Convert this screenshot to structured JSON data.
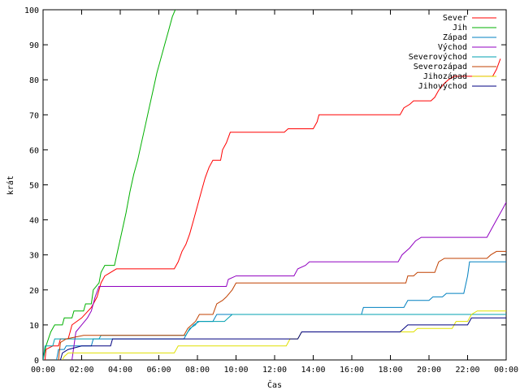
{
  "chart_data": {
    "type": "line",
    "title": "",
    "xlabel": "Čas",
    "ylabel": "krát",
    "xlim": [
      0,
      24
    ],
    "ylim": [
      0,
      100
    ],
    "grid": false,
    "legend_position": "top-right",
    "x_ticks": [
      "00:00",
      "02:00",
      "04:00",
      "06:00",
      "08:00",
      "10:00",
      "12:00",
      "14:00",
      "16:00",
      "18:00",
      "20:00",
      "22:00",
      "00:00"
    ],
    "y_ticks": [
      0,
      10,
      20,
      30,
      40,
      50,
      60,
      70,
      80,
      90,
      100
    ],
    "series": [
      {
        "name": "Sever",
        "color": "#ff0000",
        "points": [
          [
            0.1,
            0
          ],
          [
            0.15,
            3
          ],
          [
            0.5,
            4
          ],
          [
            0.8,
            4
          ],
          [
            0.9,
            6
          ],
          [
            1.3,
            6
          ],
          [
            1.4,
            8
          ],
          [
            1.5,
            10
          ],
          [
            2.0,
            12
          ],
          [
            2.5,
            15
          ],
          [
            2.8,
            18
          ],
          [
            3.0,
            22
          ],
          [
            3.2,
            24
          ],
          [
            3.5,
            25
          ],
          [
            3.8,
            26
          ],
          [
            6.8,
            26
          ],
          [
            7.0,
            28
          ],
          [
            7.2,
            31
          ],
          [
            7.4,
            33
          ],
          [
            7.6,
            36
          ],
          [
            7.8,
            40
          ],
          [
            8.0,
            44
          ],
          [
            8.2,
            48
          ],
          [
            8.4,
            52
          ],
          [
            8.6,
            55
          ],
          [
            8.8,
            57
          ],
          [
            9.2,
            57
          ],
          [
            9.3,
            60
          ],
          [
            9.5,
            62
          ],
          [
            9.7,
            65
          ],
          [
            12.5,
            65
          ],
          [
            12.7,
            66
          ],
          [
            14.0,
            66
          ],
          [
            14.2,
            68
          ],
          [
            14.3,
            70
          ],
          [
            18.5,
            70
          ],
          [
            18.7,
            72
          ],
          [
            19.0,
            73
          ],
          [
            19.2,
            74
          ],
          [
            20.1,
            74
          ],
          [
            20.3,
            75
          ],
          [
            20.5,
            77
          ],
          [
            20.8,
            79
          ],
          [
            21.0,
            80
          ],
          [
            21.3,
            81
          ],
          [
            23.3,
            81
          ],
          [
            23.5,
            83
          ],
          [
            23.7,
            86
          ]
        ]
      },
      {
        "name": "Jih",
        "color": "#00b000",
        "points": [
          [
            0.0,
            0
          ],
          [
            0.15,
            4
          ],
          [
            0.4,
            8
          ],
          [
            0.6,
            10
          ],
          [
            1.0,
            10
          ],
          [
            1.1,
            12
          ],
          [
            1.5,
            12
          ],
          [
            1.6,
            14
          ],
          [
            2.1,
            14
          ],
          [
            2.2,
            16
          ],
          [
            2.5,
            16
          ],
          [
            2.6,
            20
          ],
          [
            2.9,
            22
          ],
          [
            3.0,
            25
          ],
          [
            3.2,
            27
          ],
          [
            3.7,
            27
          ],
          [
            3.9,
            32
          ],
          [
            4.1,
            37
          ],
          [
            4.3,
            42
          ],
          [
            4.5,
            48
          ],
          [
            4.7,
            53
          ],
          [
            4.9,
            57
          ],
          [
            5.1,
            62
          ],
          [
            5.3,
            67
          ],
          [
            5.5,
            72
          ],
          [
            5.7,
            77
          ],
          [
            5.9,
            82
          ],
          [
            6.1,
            86
          ],
          [
            6.3,
            90
          ],
          [
            6.5,
            94
          ],
          [
            6.7,
            98
          ],
          [
            6.85,
            100
          ]
        ]
      },
      {
        "name": "Západ",
        "color": "#0080c0",
        "points": [
          [
            0.7,
            0
          ],
          [
            0.8,
            3
          ],
          [
            1.1,
            3
          ],
          [
            1.2,
            4
          ],
          [
            2.5,
            4
          ],
          [
            2.6,
            6
          ],
          [
            7.3,
            6
          ],
          [
            7.5,
            8
          ],
          [
            7.8,
            10
          ],
          [
            8.1,
            11
          ],
          [
            8.8,
            11
          ],
          [
            9.0,
            13
          ],
          [
            16.5,
            13
          ],
          [
            16.6,
            15
          ],
          [
            18.7,
            15
          ],
          [
            18.9,
            17
          ],
          [
            20.0,
            17
          ],
          [
            20.2,
            18
          ],
          [
            20.7,
            18
          ],
          [
            20.9,
            19
          ],
          [
            21.8,
            19
          ],
          [
            22.0,
            24
          ],
          [
            22.1,
            28
          ],
          [
            24,
            28
          ]
        ]
      },
      {
        "name": "Východ",
        "color": "#9000c0",
        "points": [
          [
            1.5,
            0
          ],
          [
            1.7,
            8
          ],
          [
            2.0,
            10
          ],
          [
            2.3,
            12
          ],
          [
            2.5,
            14
          ],
          [
            2.7,
            18
          ],
          [
            2.9,
            21
          ],
          [
            9.5,
            21
          ],
          [
            9.6,
            23
          ],
          [
            10.0,
            24
          ],
          [
            13.0,
            24
          ],
          [
            13.2,
            26
          ],
          [
            13.6,
            27
          ],
          [
            13.8,
            28
          ],
          [
            18.4,
            28
          ],
          [
            18.6,
            30
          ],
          [
            19.0,
            32
          ],
          [
            19.3,
            34
          ],
          [
            19.6,
            35
          ],
          [
            23.0,
            35
          ],
          [
            23.2,
            37
          ],
          [
            23.5,
            40
          ],
          [
            23.8,
            43
          ],
          [
            24,
            45
          ]
        ]
      },
      {
        "name": "Severovýchod",
        "color": "#00a0b0",
        "points": [
          [
            0.0,
            0
          ],
          [
            0.1,
            4
          ],
          [
            0.5,
            4
          ],
          [
            0.6,
            6
          ],
          [
            2.9,
            6
          ],
          [
            3.0,
            7
          ],
          [
            7.4,
            7
          ],
          [
            7.6,
            9
          ],
          [
            7.9,
            10
          ],
          [
            8.0,
            11
          ],
          [
            9.4,
            11
          ],
          [
            9.6,
            12
          ],
          [
            9.8,
            13
          ],
          [
            15.2,
            13
          ],
          [
            15.3,
            13
          ],
          [
            16.6,
            13
          ],
          [
            16.7,
            13
          ],
          [
            24,
            13
          ]
        ]
      },
      {
        "name": "Severozápad",
        "color": "#c04000",
        "points": [
          [
            0.8,
            0
          ],
          [
            0.9,
            5
          ],
          [
            1.2,
            6
          ],
          [
            2.1,
            7
          ],
          [
            7.3,
            7
          ],
          [
            7.5,
            9
          ],
          [
            7.9,
            11
          ],
          [
            8.1,
            13
          ],
          [
            8.8,
            13
          ],
          [
            9.0,
            16
          ],
          [
            9.3,
            17
          ],
          [
            9.5,
            18
          ],
          [
            9.8,
            20
          ],
          [
            10.0,
            22
          ],
          [
            18.8,
            22
          ],
          [
            18.9,
            24
          ],
          [
            19.2,
            24
          ],
          [
            19.4,
            25
          ],
          [
            20.3,
            25
          ],
          [
            20.5,
            28
          ],
          [
            20.8,
            29
          ],
          [
            23.0,
            29
          ],
          [
            23.2,
            30
          ],
          [
            23.5,
            31
          ],
          [
            24,
            31
          ]
        ]
      },
      {
        "name": "Jihozápad",
        "color": "#e0e000",
        "points": [
          [
            1.0,
            0
          ],
          [
            1.1,
            1
          ],
          [
            1.3,
            2
          ],
          [
            6.8,
            2
          ],
          [
            7.0,
            4
          ],
          [
            12.6,
            4
          ],
          [
            12.8,
            6
          ],
          [
            13.2,
            6
          ],
          [
            13.4,
            8
          ],
          [
            19.2,
            8
          ],
          [
            19.4,
            9
          ],
          [
            21.2,
            9
          ],
          [
            21.4,
            11
          ],
          [
            22.0,
            11
          ],
          [
            22.2,
            13
          ],
          [
            22.5,
            14
          ],
          [
            24,
            14
          ]
        ]
      },
      {
        "name": "Jihovýchod",
        "color": "#000080",
        "points": [
          [
            0.9,
            0
          ],
          [
            1.0,
            2
          ],
          [
            1.3,
            3
          ],
          [
            2.0,
            4
          ],
          [
            3.5,
            4
          ],
          [
            3.6,
            6
          ],
          [
            13.2,
            6
          ],
          [
            13.4,
            8
          ],
          [
            18.5,
            8
          ],
          [
            18.7,
            9
          ],
          [
            18.9,
            10
          ],
          [
            22.0,
            10
          ],
          [
            22.2,
            12
          ],
          [
            24,
            12
          ]
        ]
      }
    ]
  }
}
